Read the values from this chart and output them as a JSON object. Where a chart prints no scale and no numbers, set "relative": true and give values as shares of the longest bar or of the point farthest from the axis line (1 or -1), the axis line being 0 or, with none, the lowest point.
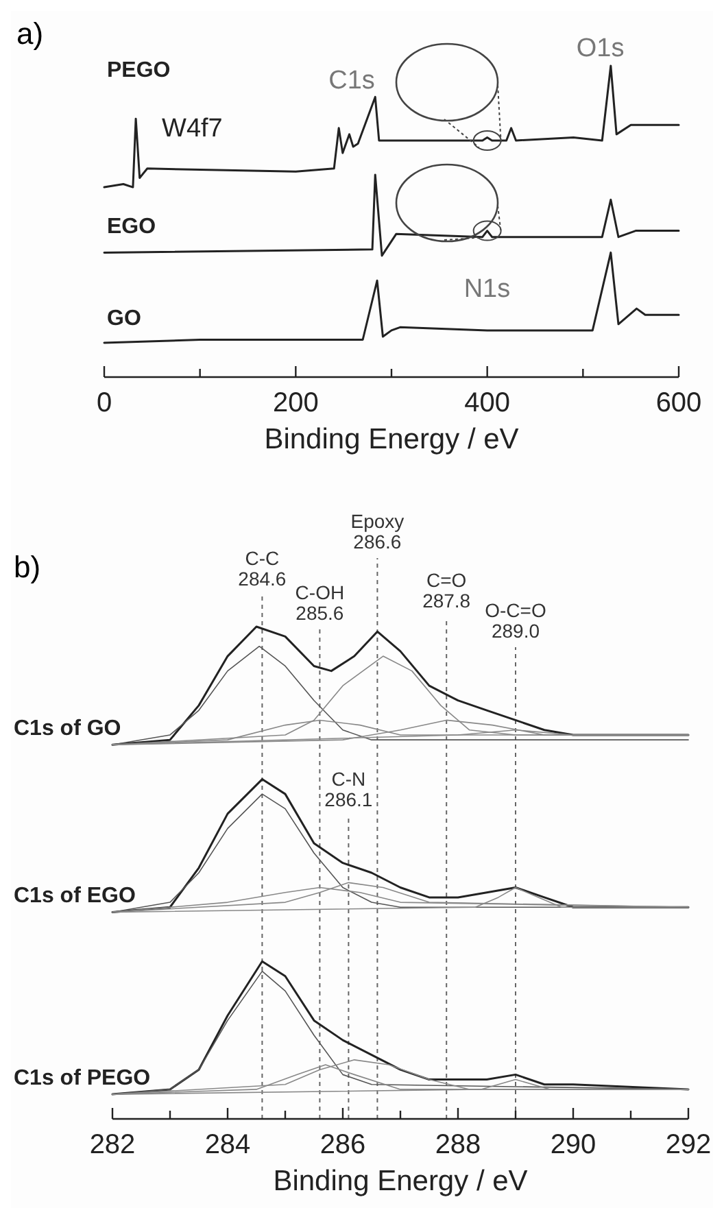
{
  "chart_data": [
    {
      "type": "line",
      "title": "a)",
      "xlabel": "Binding Energy / eV",
      "relative": true,
      "tick_labels": "x",
      "xlim": [
        0,
        600
      ],
      "xticks": [
        0,
        {
          "value": 100,
          "label": null
        },
        200,
        {
          "value": 300,
          "label": null
        },
        400,
        {
          "value": 500,
          "label": null
        },
        600
      ],
      "annotations": [
        {
          "text": "W4f7",
          "x": 33,
          "y": 0.83
        },
        {
          "text": "C1s",
          "x": 283,
          "y": 0.9
        },
        {
          "text": "O1s",
          "x": 529,
          "y": 1.0
        },
        {
          "text": "N1s",
          "x": 400,
          "y": 0.47
        }
      ],
      "series": [
        {
          "name": "PEGO",
          "color": "#222222",
          "x": [
            0,
            20,
            30,
            33,
            37,
            45,
            200,
            240,
            245,
            249,
            256,
            260,
            265,
            283,
            287,
            300,
            395,
            400,
            405,
            420,
            425,
            430,
            490,
            520,
            529,
            535,
            550,
            600
          ],
          "values": [
            0.61,
            0.62,
            0.61,
            0.83,
            0.64,
            0.67,
            0.66,
            0.67,
            0.8,
            0.72,
            0.78,
            0.74,
            0.75,
            0.9,
            0.76,
            0.76,
            0.76,
            0.77,
            0.76,
            0.76,
            0.8,
            0.76,
            0.77,
            0.76,
            1.0,
            0.78,
            0.81,
            0.81
          ]
        },
        {
          "name": "EGO",
          "color": "#222222",
          "x": [
            0,
            280,
            283,
            290,
            305,
            395,
            400,
            405,
            520,
            529,
            537,
            555,
            600
          ],
          "values": [
            0.4,
            0.41,
            0.65,
            0.39,
            0.46,
            0.45,
            0.47,
            0.45,
            0.45,
            0.57,
            0.45,
            0.47,
            0.47
          ]
        },
        {
          "name": "GO",
          "color": "#222222",
          "x": [
            0,
            100,
            270,
            285,
            291,
            300,
            309,
            400,
            510,
            529,
            537,
            556,
            565,
            600
          ],
          "values": [
            0.11,
            0.12,
            0.12,
            0.31,
            0.13,
            0.15,
            0.16,
            0.15,
            0.15,
            0.4,
            0.17,
            0.22,
            0.2,
            0.2
          ]
        }
      ]
    },
    {
      "type": "line",
      "title": "b)",
      "xlabel": "Binding Energy / eV",
      "relative": true,
      "tick_labels": "x",
      "xlim": [
        282,
        292
      ],
      "xticks": [
        282,
        {
          "value": 283,
          "label": null
        },
        284,
        {
          "value": 285,
          "label": null
        },
        286,
        {
          "value": 287,
          "label": null
        },
        288,
        {
          "value": 289,
          "label": null
        },
        290,
        {
          "value": 291,
          "label": null
        },
        292
      ],
      "ref_lines": [
        {
          "axis": "x",
          "value": 284.6,
          "label": "C-C 284.6"
        },
        {
          "axis": "x",
          "value": 285.6,
          "label": "C-OH 285.6"
        },
        {
          "axis": "x",
          "value": 286.6,
          "label": "Epoxy 286.6"
        },
        {
          "axis": "x",
          "value": 287.8,
          "label": "C=O 287.8"
        },
        {
          "axis": "x",
          "value": 289.0,
          "label": "O-C=O 289.0"
        },
        {
          "axis": "x",
          "value": 286.1,
          "label": "C-N 286.1"
        }
      ],
      "series": [
        {
          "name": "C1s of GO",
          "color": "#222222",
          "x": [
            282,
            283,
            283.5,
            284,
            284.5,
            285,
            285.5,
            285.8,
            286.2,
            286.6,
            287,
            287.5,
            288,
            288.5,
            289,
            289.5,
            290,
            291,
            292
          ],
          "values": [
            0.76,
            0.77,
            0.84,
            0.94,
            1.0,
            0.98,
            0.92,
            0.91,
            0.94,
            0.99,
            0.95,
            0.88,
            0.85,
            0.83,
            0.81,
            0.79,
            0.78,
            0.78,
            0.78
          ]
        },
        {
          "color": "#555555",
          "x": [
            282,
            283,
            283.5,
            284,
            284.55,
            285,
            285.5,
            286,
            286.5,
            287,
            292
          ],
          "values": [
            0.76,
            0.78,
            0.83,
            0.91,
            0.96,
            0.92,
            0.85,
            0.79,
            0.77,
            0.77,
            0.77
          ]
        },
        {
          "color": "#888888",
          "x": [
            282,
            284,
            285,
            285.6,
            286.3,
            287,
            292
          ],
          "values": [
            0.76,
            0.77,
            0.8,
            0.81,
            0.8,
            0.78,
            0.78
          ]
        },
        {
          "color": "#888888",
          "x": [
            282,
            285,
            285.5,
            286,
            286.7,
            287.2,
            287.7,
            288.2,
            289,
            292
          ],
          "values": [
            0.76,
            0.78,
            0.81,
            0.88,
            0.94,
            0.91,
            0.84,
            0.79,
            0.78,
            0.78
          ]
        },
        {
          "color": "#888888",
          "x": [
            282,
            286,
            287,
            287.8,
            288.6,
            289.5,
            292
          ],
          "values": [
            0.76,
            0.77,
            0.79,
            0.81,
            0.8,
            0.78,
            0.78
          ]
        },
        {
          "color": "#888888",
          "x": [
            282,
            288,
            289,
            290,
            292
          ],
          "values": [
            0.76,
            0.78,
            0.79,
            0.78,
            0.78
          ]
        },
        {
          "name": "C1s of EGO",
          "color": "#222222",
          "x": [
            282,
            283,
            283.5,
            284,
            284.6,
            285,
            285.5,
            286,
            286.5,
            287,
            287.5,
            288,
            288.5,
            289,
            289.5,
            290,
            291,
            292
          ],
          "values": [
            0.42,
            0.43,
            0.51,
            0.62,
            0.69,
            0.66,
            0.56,
            0.52,
            0.5,
            0.47,
            0.45,
            0.45,
            0.46,
            0.47,
            0.45,
            0.43,
            0.43,
            0.43
          ]
        },
        {
          "color": "#555555",
          "x": [
            282,
            283,
            283.5,
            284,
            284.6,
            285,
            285.5,
            286,
            286.5,
            287,
            292
          ],
          "values": [
            0.42,
            0.44,
            0.5,
            0.59,
            0.66,
            0.63,
            0.54,
            0.47,
            0.44,
            0.43,
            0.43
          ]
        },
        {
          "color": "#888888",
          "x": [
            282,
            284,
            285,
            285.6,
            286.3,
            287,
            292
          ],
          "values": [
            0.42,
            0.44,
            0.46,
            0.47,
            0.46,
            0.44,
            0.43
          ]
        },
        {
          "color": "#888888",
          "x": [
            282,
            285,
            285.6,
            286.1,
            286.7,
            287.5,
            292
          ],
          "values": [
            0.42,
            0.44,
            0.46,
            0.48,
            0.47,
            0.44,
            0.43
          ]
        },
        {
          "color": "#888888",
          "x": [
            282,
            288.3,
            288.7,
            289,
            289.4,
            289.8,
            292
          ],
          "values": [
            0.42,
            0.43,
            0.45,
            0.47,
            0.45,
            0.43,
            0.43
          ]
        },
        {
          "name": "C1s of PEGO",
          "color": "#222222",
          "x": [
            282,
            283,
            283.5,
            284,
            284.6,
            285,
            285.5,
            286,
            286.5,
            287,
            287.5,
            288,
            288.5,
            289,
            289.5,
            290,
            292
          ],
          "values": [
            0.05,
            0.06,
            0.1,
            0.21,
            0.32,
            0.29,
            0.2,
            0.16,
            0.13,
            0.1,
            0.08,
            0.08,
            0.08,
            0.09,
            0.07,
            0.07,
            0.06
          ]
        },
        {
          "color": "#555555",
          "x": [
            282,
            283,
            283.5,
            284,
            284.6,
            285,
            285.5,
            286,
            286.5,
            292
          ],
          "values": [
            0.05,
            0.06,
            0.1,
            0.2,
            0.3,
            0.26,
            0.17,
            0.09,
            0.07,
            0.06
          ]
        },
        {
          "color": "#888888",
          "x": [
            282,
            284.5,
            285.2,
            285.7,
            286.2,
            287,
            292
          ],
          "values": [
            0.05,
            0.06,
            0.09,
            0.11,
            0.09,
            0.06,
            0.06
          ]
        },
        {
          "color": "#888888",
          "x": [
            282,
            285,
            285.6,
            286.2,
            286.8,
            287.5,
            288.2,
            292
          ],
          "values": [
            0.05,
            0.07,
            0.1,
            0.12,
            0.11,
            0.08,
            0.06,
            0.06
          ]
        },
        {
          "color": "#888888",
          "x": [
            282,
            288.4,
            289,
            289.6,
            292
          ],
          "values": [
            0.05,
            0.06,
            0.08,
            0.06,
            0.06
          ]
        }
      ]
    }
  ]
}
